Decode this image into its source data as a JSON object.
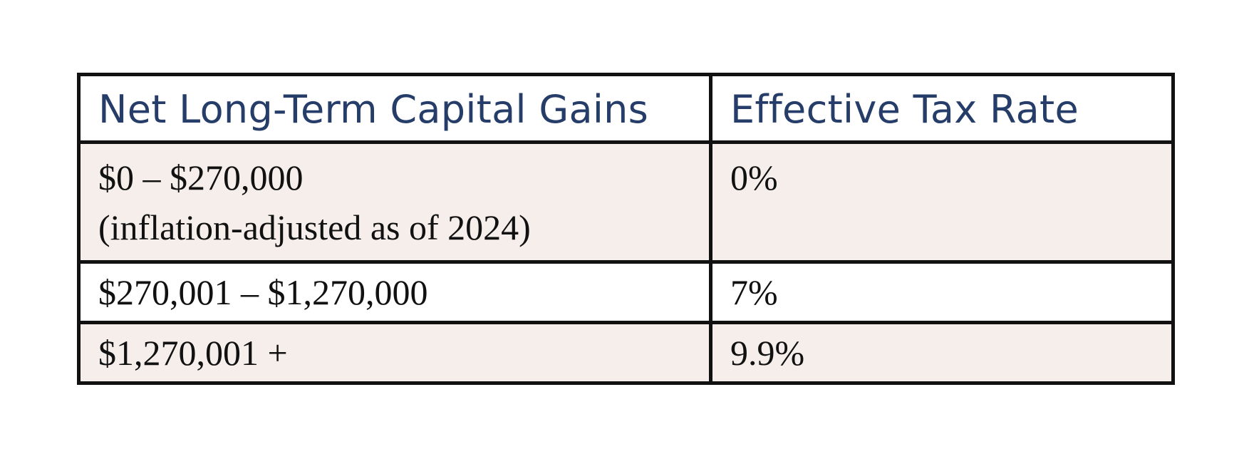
{
  "table": {
    "headers": {
      "gains": "Net Long-Term Capital Gains",
      "rate": "Effective Tax Rate"
    },
    "rows": [
      {
        "gains": "$0 – $270,000",
        "note": "(inflation-adjusted as of 2024)",
        "rate": "0%"
      },
      {
        "gains": "$270,001 – $1,270,000",
        "rate": "7%"
      },
      {
        "gains": "$1,270,001 +",
        "rate": "9.9%"
      }
    ]
  },
  "colors": {
    "header_text": "#253d68",
    "shaded_row": "#f5eeeb",
    "border": "#111111"
  }
}
